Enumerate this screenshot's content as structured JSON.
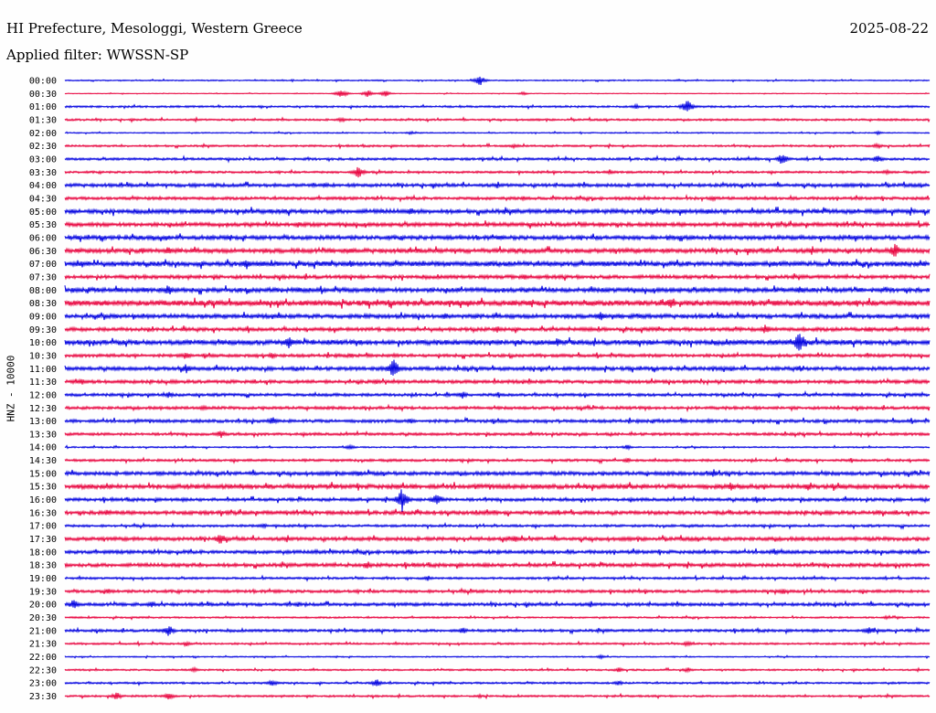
{
  "header": {
    "title": "HI Prefecture, Mesologgi, Western Greece",
    "date": "2025-08-22",
    "filter": "Applied filter: WWSSN-SP"
  },
  "chart_data": {
    "type": "line",
    "title": "HI Prefecture, Mesologgi, Western Greece",
    "ylabel": "HNZ - 10000",
    "xlabel": "",
    "colors": [
      "#0000e0",
      "#e8003c"
    ],
    "grid": false,
    "rows": [
      {
        "label": "00:00",
        "noise": 0.5,
        "events": [
          [
            0.48,
            6
          ]
        ]
      },
      {
        "label": "00:30",
        "noise": 0.3,
        "events": [
          [
            0.32,
            5
          ],
          [
            0.35,
            4
          ],
          [
            0.37,
            4
          ],
          [
            0.53,
            2
          ]
        ]
      },
      {
        "label": "01:00",
        "noise": 0.8,
        "events": [
          [
            0.72,
            9
          ],
          [
            0.66,
            3
          ]
        ]
      },
      {
        "label": "01:30",
        "noise": 0.8,
        "events": [
          [
            0.32,
            3
          ]
        ]
      },
      {
        "label": "02:00",
        "noise": 0.5,
        "events": [
          [
            0.4,
            2
          ],
          [
            0.94,
            2
          ]
        ]
      },
      {
        "label": "02:30",
        "noise": 0.8,
        "events": [
          [
            0.52,
            3
          ],
          [
            0.94,
            3
          ]
        ]
      },
      {
        "label": "03:00",
        "noise": 1.0,
        "events": [
          [
            0.83,
            8
          ],
          [
            0.94,
            5
          ]
        ]
      },
      {
        "label": "03:30",
        "noise": 0.9,
        "events": [
          [
            0.34,
            8
          ],
          [
            0.63,
            3
          ],
          [
            0.95,
            3
          ]
        ]
      },
      {
        "label": "04:00",
        "noise": 1.4,
        "events": [
          [
            0.15,
            3
          ],
          [
            0.3,
            3
          ]
        ]
      },
      {
        "label": "04:30",
        "noise": 1.2,
        "events": [
          [
            0.53,
            3
          ],
          [
            0.75,
            3
          ]
        ]
      },
      {
        "label": "05:00",
        "noise": 1.8,
        "events": [
          [
            0.4,
            5
          ],
          [
            0.68,
            4
          ]
        ]
      },
      {
        "label": "05:30",
        "noise": 1.6,
        "events": [
          [
            0.27,
            4
          ],
          [
            0.62,
            3
          ]
        ]
      },
      {
        "label": "06:00",
        "noise": 1.7,
        "events": [
          [
            0.1,
            3
          ],
          [
            0.7,
            3
          ]
        ]
      },
      {
        "label": "06:30",
        "noise": 1.8,
        "events": [
          [
            0.09,
            4
          ],
          [
            0.12,
            5
          ],
          [
            0.33,
            4
          ],
          [
            0.96,
            9
          ]
        ]
      },
      {
        "label": "07:00",
        "noise": 2.0,
        "events": [
          [
            0.02,
            4
          ],
          [
            0.21,
            7
          ],
          [
            0.33,
            5
          ]
        ]
      },
      {
        "label": "07:30",
        "noise": 1.5,
        "events": [
          [
            0.53,
            4
          ]
        ]
      },
      {
        "label": "08:00",
        "noise": 1.8,
        "events": [
          [
            0.12,
            7
          ],
          [
            0.27,
            4
          ],
          [
            0.85,
            5
          ]
        ]
      },
      {
        "label": "08:30",
        "noise": 2.2,
        "events": [
          [
            0.7,
            6
          ],
          [
            0.61,
            3
          ]
        ]
      },
      {
        "label": "09:00",
        "noise": 1.7,
        "events": [
          [
            0.44,
            4
          ],
          [
            0.62,
            6
          ]
        ]
      },
      {
        "label": "09:30",
        "noise": 1.5,
        "events": [
          [
            0.5,
            4
          ],
          [
            0.81,
            6
          ],
          [
            0.93,
            4
          ]
        ]
      },
      {
        "label": "10:00",
        "noise": 2.0,
        "events": [
          [
            0.26,
            8
          ],
          [
            0.57,
            6
          ],
          [
            0.85,
            14
          ]
        ]
      },
      {
        "label": "10:30",
        "noise": 1.3,
        "events": [
          [
            0.14,
            5
          ],
          [
            0.24,
            4
          ],
          [
            0.33,
            3
          ]
        ]
      },
      {
        "label": "11:00",
        "noise": 1.5,
        "events": [
          [
            0.14,
            6
          ],
          [
            0.38,
            13
          ],
          [
            0.85,
            4
          ]
        ]
      },
      {
        "label": "11:30",
        "noise": 1.4,
        "events": [
          [
            0.02,
            4
          ],
          [
            0.36,
            3
          ]
        ]
      },
      {
        "label": "12:00",
        "noise": 1.2,
        "events": [
          [
            0.12,
            4
          ],
          [
            0.46,
            5
          ]
        ]
      },
      {
        "label": "12:30",
        "noise": 1.2,
        "events": [
          [
            0.16,
            3
          ],
          [
            0.8,
            2
          ]
        ]
      },
      {
        "label": "13:00",
        "noise": 1.3,
        "events": [
          [
            0.24,
            5
          ],
          [
            0.4,
            3
          ]
        ]
      },
      {
        "label": "13:30",
        "noise": 1.1,
        "events": [
          [
            0.18,
            5
          ]
        ]
      },
      {
        "label": "14:00",
        "noise": 0.6,
        "events": [
          [
            0.33,
            3
          ],
          [
            0.65,
            3
          ]
        ]
      },
      {
        "label": "14:30",
        "noise": 1.0,
        "events": [
          [
            0.65,
            3
          ]
        ]
      },
      {
        "label": "15:00",
        "noise": 1.5,
        "events": [
          [
            0.11,
            4
          ],
          [
            0.34,
            4
          ],
          [
            0.75,
            5
          ]
        ]
      },
      {
        "label": "15:30",
        "noise": 1.8,
        "events": [
          [
            0.77,
            5
          ],
          [
            0.86,
            5
          ]
        ]
      },
      {
        "label": "16:00",
        "noise": 1.3,
        "events": [
          [
            0.39,
            14
          ],
          [
            0.43,
            8
          ],
          [
            0.8,
            4
          ]
        ]
      },
      {
        "label": "16:30",
        "noise": 1.5,
        "events": [
          [
            0.05,
            4
          ],
          [
            0.94,
            3
          ]
        ]
      },
      {
        "label": "17:00",
        "noise": 1.0,
        "events": [
          [
            0.23,
            3
          ]
        ]
      },
      {
        "label": "17:30",
        "noise": 1.5,
        "events": [
          [
            0.18,
            7
          ],
          [
            0.52,
            4
          ]
        ]
      },
      {
        "label": "18:00",
        "noise": 1.4,
        "events": [
          [
            0.29,
            3
          ],
          [
            0.4,
            3
          ],
          [
            0.82,
            4
          ]
        ]
      },
      {
        "label": "18:30",
        "noise": 1.5,
        "events": [
          [
            0.35,
            5
          ],
          [
            0.91,
            3
          ]
        ]
      },
      {
        "label": "19:00",
        "noise": 0.9,
        "events": [
          [
            0.42,
            3
          ]
        ]
      },
      {
        "label": "19:30",
        "noise": 1.2,
        "events": [
          [
            0.05,
            3
          ],
          [
            0.83,
            3
          ]
        ]
      },
      {
        "label": "20:00",
        "noise": 1.3,
        "events": [
          [
            0.01,
            6
          ],
          [
            0.1,
            4
          ],
          [
            0.27,
            3
          ]
        ]
      },
      {
        "label": "20:30",
        "noise": 0.7,
        "events": [
          [
            0.95,
            2
          ]
        ]
      },
      {
        "label": "21:00",
        "noise": 1.1,
        "events": [
          [
            0.12,
            7
          ],
          [
            0.46,
            4
          ],
          [
            0.93,
            6
          ]
        ]
      },
      {
        "label": "21:30",
        "noise": 0.8,
        "events": [
          [
            0.14,
            3
          ],
          [
            0.72,
            3
          ]
        ]
      },
      {
        "label": "22:00",
        "noise": 0.5,
        "events": [
          [
            0.62,
            2
          ]
        ]
      },
      {
        "label": "22:30",
        "noise": 0.7,
        "events": [
          [
            0.15,
            3
          ],
          [
            0.64,
            3
          ],
          [
            0.72,
            3
          ]
        ]
      },
      {
        "label": "23:00",
        "noise": 0.8,
        "events": [
          [
            0.24,
            4
          ],
          [
            0.36,
            5
          ],
          [
            0.64,
            3
          ]
        ]
      },
      {
        "label": "23:30",
        "noise": 0.8,
        "events": [
          [
            0.06,
            5
          ],
          [
            0.12,
            5
          ],
          [
            0.48,
            2
          ]
        ]
      }
    ]
  }
}
